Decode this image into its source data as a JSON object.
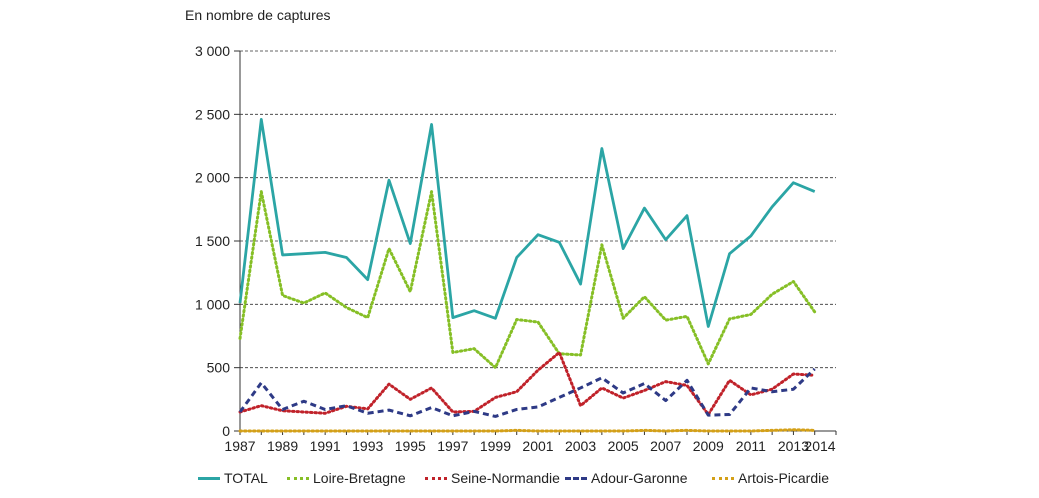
{
  "chart_data": {
    "type": "line",
    "ylabel": "En nombre de captures",
    "ylim": [
      0,
      3000
    ],
    "y_ticks": [
      0,
      500,
      1000,
      1500,
      2000,
      2500,
      3000
    ],
    "y_tick_labels": [
      "0",
      "500",
      "1 000",
      "1 500",
      "2 000",
      "2 500",
      "3 000"
    ],
    "x_ticks": [
      1987,
      1989,
      1991,
      1993,
      1995,
      1997,
      1999,
      2001,
      2003,
      2005,
      2007,
      2009,
      2011,
      2013,
      2014
    ],
    "x_tick_labels": [
      "1987",
      "1989",
      "1991",
      "1993",
      "1995",
      "1997",
      "1999",
      "2001",
      "2003",
      "2005",
      "2007",
      "2009",
      "2011",
      "2013",
      "2014"
    ],
    "xlim": [
      1987,
      2015
    ],
    "grid": true,
    "legend_position": "bottom",
    "x": [
      1987,
      1988,
      1989,
      1990,
      1991,
      1992,
      1993,
      1994,
      1995,
      1996,
      1997,
      1998,
      1999,
      2000,
      2001,
      2002,
      2003,
      2004,
      2005,
      2006,
      2007,
      2008,
      2009,
      2010,
      2011,
      2012,
      2013,
      2014
    ],
    "series": [
      {
        "name": "TOTAL",
        "color": "#2ba5a5",
        "style": "solid",
        "values": [
          1010,
          2460,
          1390,
          1400,
          1410,
          1370,
          1195,
          1980,
          1480,
          2420,
          895,
          950,
          890,
          1370,
          1550,
          1490,
          1160,
          2230,
          1440,
          1760,
          1510,
          1700,
          825,
          1400,
          1540,
          1770,
          1960,
          1890
        ]
      },
      {
        "name": "Loire-Bretagne",
        "color": "#86bf26",
        "style": "dot",
        "values": [
          730,
          1890,
          1070,
          1010,
          1090,
          975,
          895,
          1440,
          1100,
          1890,
          620,
          650,
          500,
          880,
          860,
          610,
          600,
          1470,
          890,
          1060,
          875,
          905,
          530,
          885,
          920,
          1080,
          1180,
          940
        ]
      },
      {
        "name": "Seine-Normandie",
        "color": "#c0222a",
        "style": "dot",
        "values": [
          150,
          200,
          160,
          150,
          140,
          195,
          175,
          370,
          250,
          340,
          150,
          155,
          265,
          310,
          480,
          620,
          200,
          340,
          260,
          320,
          390,
          360,
          130,
          400,
          285,
          330,
          450,
          440
        ]
      },
      {
        "name": "Adour-Garonne",
        "color": "#2e3a86",
        "style": "dash",
        "values": [
          150,
          380,
          170,
          235,
          170,
          200,
          140,
          165,
          120,
          185,
          120,
          155,
          115,
          170,
          190,
          265,
          340,
          420,
          300,
          375,
          240,
          400,
          125,
          130,
          340,
          310,
          330,
          490
        ]
      },
      {
        "name": "Artois-Picardie",
        "color": "#d4a017",
        "style": "dot",
        "values": [
          0,
          0,
          0,
          0,
          0,
          0,
          0,
          0,
          0,
          0,
          0,
          0,
          0,
          5,
          0,
          0,
          0,
          0,
          0,
          5,
          0,
          5,
          0,
          0,
          0,
          5,
          10,
          5
        ]
      }
    ]
  }
}
